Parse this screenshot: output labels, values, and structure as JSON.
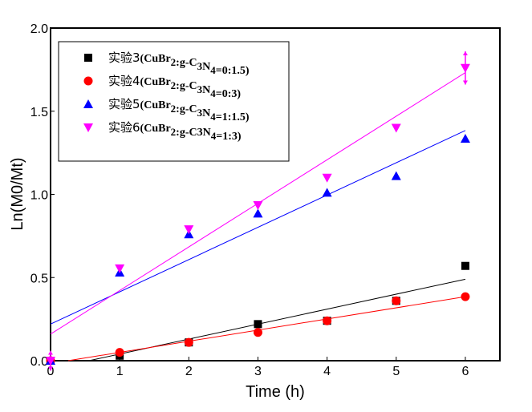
{
  "chart_data": {
    "type": "scatter",
    "xlabel": "Time (h)",
    "ylabel": "Ln(M0/Mt)",
    "xlim": [
      0,
      6.5
    ],
    "ylim": [
      0,
      2.0
    ],
    "xticks": [
      "0",
      "1",
      "2",
      "3",
      "4",
      "5",
      "6"
    ],
    "yticks": [
      "0.0",
      "0.5",
      "1.0",
      "1.5",
      "2.0"
    ],
    "grid": false,
    "legend_position": "top-left",
    "x": [
      0,
      1,
      2,
      3,
      4,
      5,
      6
    ],
    "series": [
      {
        "name_prefix": "实验3",
        "name_formula": "(CuBr2:g-C3N4=0:1.5)",
        "marker": "square",
        "color": "#000000",
        "values": [
          0,
          0.03,
          0.11,
          0.22,
          0.24,
          0.36,
          0.57
        ],
        "fit": {
          "slope": 0.09,
          "intercept": -0.05
        }
      },
      {
        "name_prefix": "实验4",
        "name_formula": "(CuBr2:g-C3N4=0:3)",
        "marker": "circle",
        "color": "#ff0000",
        "values": [
          0,
          0.05,
          0.11,
          0.17,
          0.24,
          0.36,
          0.385
        ],
        "fit": {
          "slope": 0.067,
          "intercept": -0.017
        }
      },
      {
        "name_prefix": "实验5",
        "name_formula": "(CuBr2:g-C3N4=1:1.5)",
        "marker": "triangle-up",
        "color": "#0000ff",
        "values": [
          0,
          0.53,
          0.76,
          0.885,
          1.01,
          1.11,
          1.335
        ],
        "fit": {
          "slope": 0.194,
          "intercept": 0.22
        }
      },
      {
        "name_prefix": "实验6",
        "name_formula": "(CuBr2:g-C3N4=1:3)",
        "marker": "triangle-down",
        "color": "#ff00ff",
        "values": [
          0,
          0.555,
          0.79,
          0.935,
          1.1,
          1.4,
          1.76
        ],
        "fit": {
          "slope": 0.262,
          "intercept": 0.16
        },
        "errors": [
          0.06,
          0,
          0,
          0,
          0,
          0,
          0.1
        ]
      }
    ]
  }
}
